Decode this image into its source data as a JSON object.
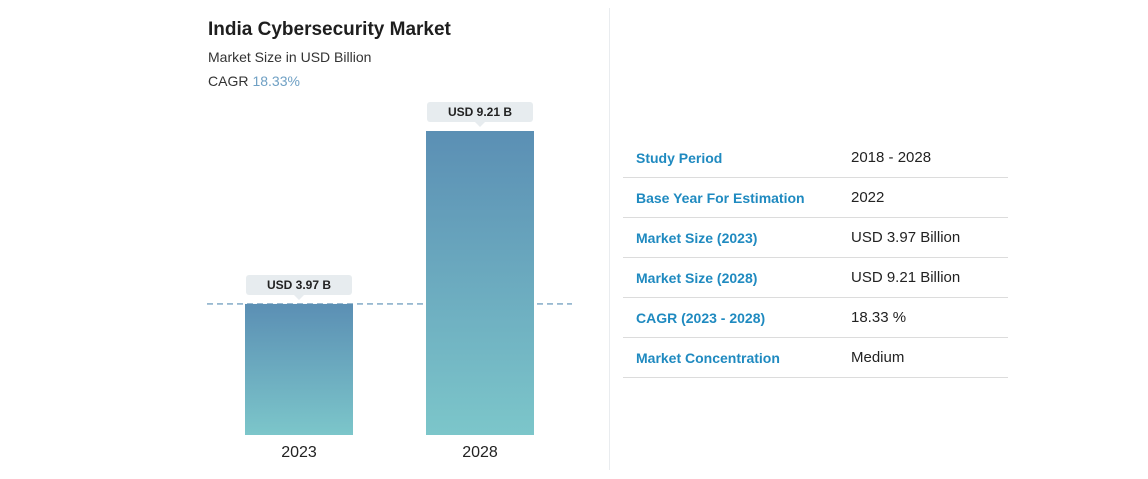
{
  "chart_data": {
    "type": "bar",
    "title": "India Cybersecurity Market",
    "subtitle": "Market Size in USD Billion",
    "cagr_label": "CAGR",
    "cagr_value": "18.33%",
    "categories": [
      "2023",
      "2028"
    ],
    "values": [
      3.97,
      9.21
    ],
    "data_labels": [
      "USD 3.97 B",
      "USD 9.21 B"
    ],
    "reference_line_value": 3.97,
    "ylim": [
      0,
      9.21
    ],
    "grid": false,
    "legend": "none",
    "colors": {
      "bar_top": "#5b8fb4",
      "bar_bottom": "#7cc6ca",
      "reference_line": "#5b8fb4",
      "label_bg": "#e7ecef"
    }
  },
  "table": {
    "rows": [
      {
        "key": "Study Period",
        "value": "2018 - 2028"
      },
      {
        "key": "Base Year For Estimation",
        "value": "2022"
      },
      {
        "key": "Market Size (2023)",
        "value": "USD 3.97 Billion"
      },
      {
        "key": "Market Size (2028)",
        "value": "USD 9.21 Billion"
      },
      {
        "key": "CAGR (2023 - 2028)",
        "value": "18.33 %"
      },
      {
        "key": "Market Concentration",
        "value": "Medium"
      }
    ]
  },
  "colors": {
    "key_text": "#1f8ac0",
    "value_text": "#222222",
    "row_border": "#dcdcdc"
  }
}
